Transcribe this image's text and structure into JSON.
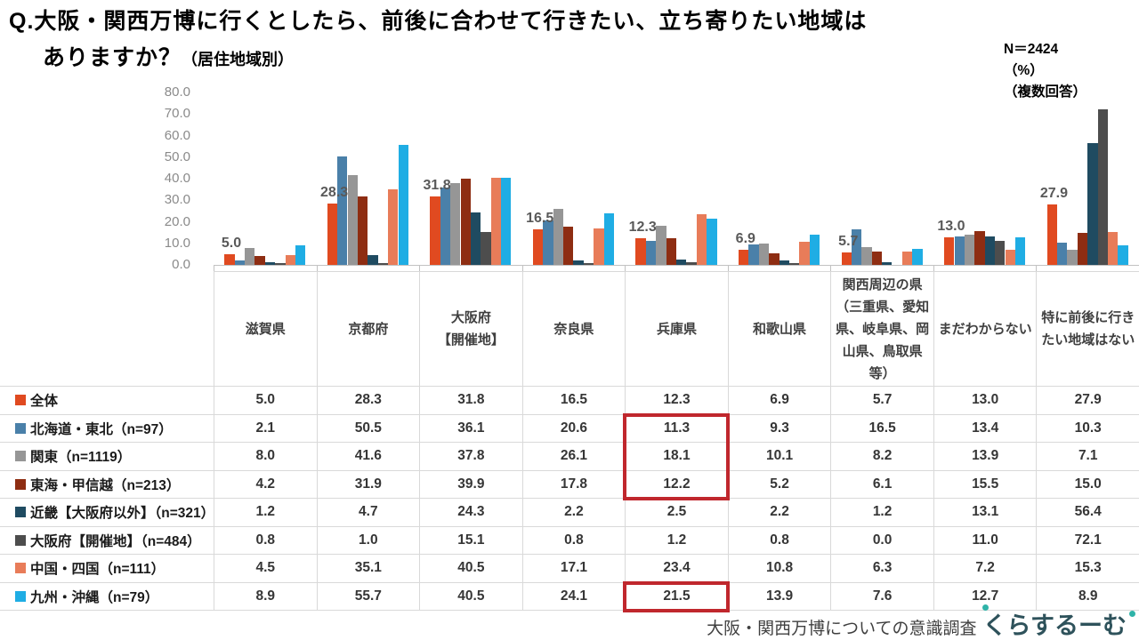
{
  "header": {
    "title_line1": "Q.大阪・関西万博に行くとしたら、前後に合わせて行きたい、立ち寄りたい地域は",
    "title_line2": "ありますか？",
    "title_note": "（居住地域別）",
    "sample": "N＝2424",
    "unit": "（%）",
    "answer_type": "（複数回答）"
  },
  "chart_data": {
    "type": "bar",
    "title": "大阪・関西万博に行くとしたら、前後に合わせて行きたい、立ち寄りたい地域（居住地域別）",
    "xlabel": "",
    "ylabel": "%",
    "ylim": [
      0,
      80
    ],
    "ytick_step": 10,
    "grid": false,
    "legend_position": "table-rows-left",
    "value_labels_shown_for": "全体",
    "categories": [
      "滋賀県",
      "京都府",
      "大阪府\n【開催地】",
      "奈良県",
      "兵庫県",
      "和歌山県",
      "関西周辺の県\n（三重県、愛知\n県、岐阜県、岡\n山県、鳥取県\n等）",
      "まだわからない",
      "特に前後に行き\nたい地域はない"
    ],
    "series": [
      {
        "name": "全体",
        "label": "全体",
        "color": "#e04a20",
        "values": [
          5.0,
          28.3,
          31.8,
          16.5,
          12.3,
          6.9,
          5.7,
          13.0,
          27.9
        ]
      },
      {
        "name": "北海道・東北",
        "label": "北海道・東北（n=97）",
        "color": "#4a80a9",
        "values": [
          2.1,
          50.5,
          36.1,
          20.6,
          11.3,
          9.3,
          16.5,
          13.4,
          10.3
        ]
      },
      {
        "name": "関東",
        "label": "関東（n=1119）",
        "color": "#969696",
        "values": [
          8.0,
          41.6,
          37.8,
          26.1,
          18.1,
          10.1,
          8.2,
          13.9,
          7.1
        ]
      },
      {
        "name": "東海・甲信越",
        "label": "東海・甲信越（n=213）",
        "color": "#8e2d12",
        "values": [
          4.2,
          31.9,
          39.9,
          17.8,
          12.2,
          5.2,
          6.1,
          15.5,
          15.0
        ]
      },
      {
        "name": "近畿【大阪府以外】",
        "label": "近畿【大阪府以外】（n=321）",
        "color": "#1f4b61",
        "values": [
          1.2,
          4.7,
          24.3,
          2.2,
          2.5,
          2.2,
          1.2,
          13.1,
          56.4
        ]
      },
      {
        "name": "大阪府【開催地】",
        "label": "大阪府【開催地】（n=484）",
        "color": "#4d4d4d",
        "values": [
          0.8,
          1.0,
          15.1,
          0.8,
          1.2,
          0.8,
          0.0,
          11.0,
          72.1
        ]
      },
      {
        "name": "中国・四国",
        "label": "中国・四国（n=111）",
        "color": "#e87c59",
        "values": [
          4.5,
          35.1,
          40.5,
          17.1,
          23.4,
          10.8,
          6.3,
          7.2,
          15.3
        ]
      },
      {
        "name": "九州・沖縄",
        "label": "九州・沖縄（n=79）",
        "color": "#1fade4",
        "values": [
          8.9,
          55.7,
          40.5,
          24.1,
          21.5,
          13.9,
          7.6,
          12.7,
          8.9
        ]
      }
    ]
  },
  "highlights": [
    {
      "column_index": 4,
      "row_start": 1,
      "row_count": 3,
      "color": "#c0272d"
    },
    {
      "column_index": 4,
      "row_start": 7,
      "row_count": 1,
      "color": "#c0272d"
    }
  ],
  "footer": {
    "survey_title": "大阪・関西万博についての意識調査",
    "brand": "くらするーむ"
  }
}
